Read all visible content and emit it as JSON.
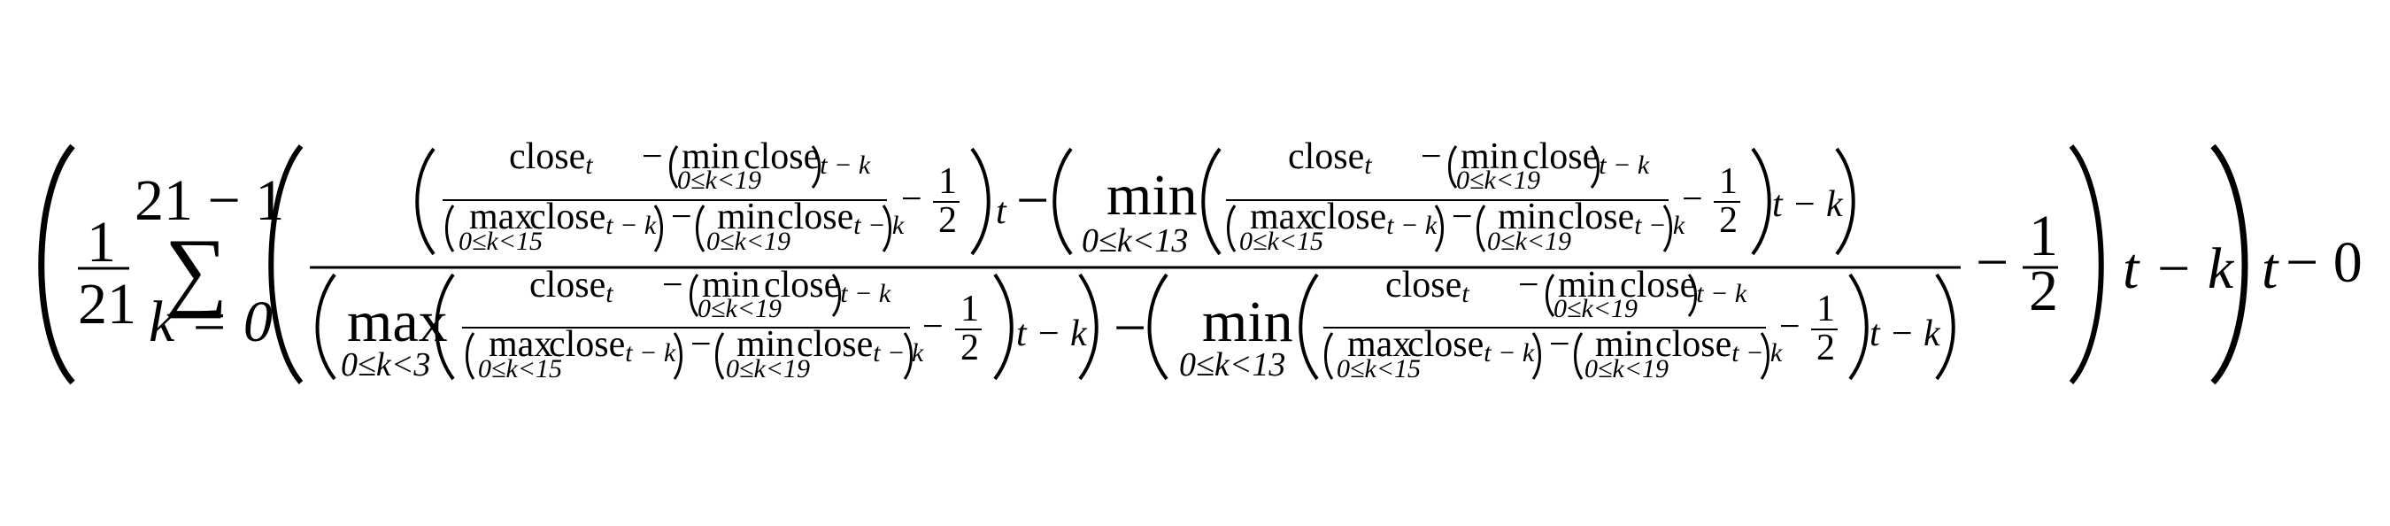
{
  "formula": {
    "description": "Time-series expression over close prices",
    "tokens": {
      "one": "1",
      "two": "2",
      "twentyone": "21",
      "sum_upper": "21 − 1",
      "sum_symbol": "∑",
      "k_eq_0": "k = 0",
      "minus": "−",
      "close": "close",
      "t": "t",
      "t_minus_k": "t − k",
      "max": "max",
      "min": "min",
      "range_k_lt_19": "0≤k<19",
      "range_k_lt_15": "0≤k<15",
      "range_k_lt_13": "0≤k<13",
      "range_k_lt_3": "0≤k<3",
      "half_numerator": "1",
      "half_denominator": "2",
      "tail": "− 0",
      "open_paren": "(",
      "close_paren": ")"
    }
  }
}
